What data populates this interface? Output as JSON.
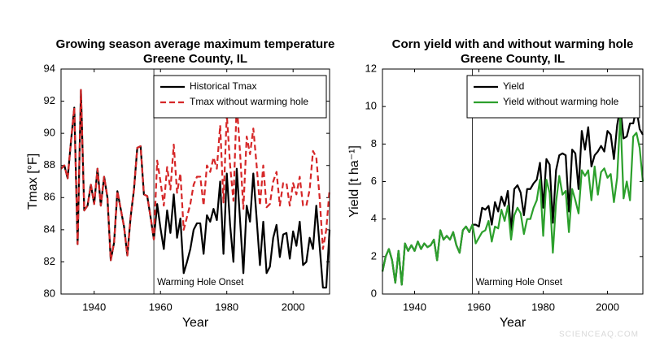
{
  "chart_data": [
    {
      "type": "line",
      "title": "Growing season average maximum temperature",
      "subtitle": "Greene County, IL",
      "x_label": "Year",
      "y_label": "Tmax [°F]",
      "x": [
        1930,
        1931,
        1932,
        1933,
        1934,
        1935,
        1936,
        1937,
        1938,
        1939,
        1940,
        1941,
        1942,
        1943,
        1944,
        1945,
        1946,
        1947,
        1948,
        1949,
        1950,
        1951,
        1952,
        1953,
        1954,
        1955,
        1956,
        1957,
        1958,
        1959,
        1960,
        1961,
        1962,
        1963,
        1964,
        1965,
        1966,
        1967,
        1968,
        1969,
        1970,
        1971,
        1972,
        1973,
        1974,
        1975,
        1976,
        1977,
        1978,
        1979,
        1980,
        1981,
        1982,
        1983,
        1984,
        1985,
        1986,
        1987,
        1988,
        1989,
        1990,
        1991,
        1992,
        1993,
        1994,
        1995,
        1996,
        1997,
        1998,
        1999,
        2000,
        2001,
        2002,
        2003,
        2004,
        2005,
        2006,
        2007,
        2008,
        2009,
        2010,
        2011
      ],
      "series": [
        {
          "name": "Historical Tmax",
          "color": "#000000",
          "line_style": "solid",
          "values": [
            87.8,
            88.0,
            87.2,
            89.5,
            91.6,
            83.1,
            92.7,
            85.2,
            85.5,
            86.8,
            85.6,
            87.8,
            85.5,
            87.3,
            86.0,
            82.1,
            83.2,
            86.4,
            85.3,
            84.2,
            82.4,
            84.8,
            86.5,
            89.1,
            89.2,
            86.2,
            86.1,
            84.8,
            83.4,
            85.6,
            84.1,
            82.8,
            85.2,
            83.8,
            86.2,
            83.5,
            84.7,
            81.3,
            82.0,
            82.8,
            84.0,
            84.4,
            84.4,
            82.5,
            84.9,
            84.5,
            85.3,
            84.6,
            87.0,
            82.5,
            87.5,
            84.3,
            82.0,
            87.8,
            84.6,
            81.3,
            85.5,
            84.5,
            87.5,
            84.7,
            81.8,
            84.5,
            81.3,
            81.7,
            83.5,
            84.3,
            82.3,
            83.7,
            83.8,
            82.2,
            83.9,
            83.0,
            84.5,
            81.8,
            82.0,
            83.5,
            82.8,
            85.5,
            83.0,
            80.4,
            80.4,
            84.0
          ]
        },
        {
          "name": "Tmax without warming hole",
          "color": "#d62728",
          "line_style": "dashed",
          "values": [
            87.8,
            88.0,
            87.2,
            89.5,
            91.6,
            83.1,
            92.7,
            85.2,
            85.5,
            86.8,
            85.6,
            87.8,
            85.5,
            87.3,
            86.0,
            82.1,
            83.2,
            86.4,
            85.3,
            84.2,
            82.4,
            84.8,
            86.5,
            89.1,
            89.2,
            86.2,
            86.1,
            84.8,
            83.4,
            88.3,
            87.0,
            85.5,
            87.9,
            86.5,
            89.3,
            86.3,
            87.5,
            84.0,
            84.8,
            85.6,
            86.8,
            87.3,
            87.3,
            85.5,
            88.0,
            87.6,
            88.5,
            87.8,
            90.5,
            85.7,
            91.2,
            88.0,
            85.8,
            91.9,
            88.8,
            85.3,
            89.8,
            88.7,
            90.3,
            88.0,
            85.5,
            88.0,
            85.4,
            85.6,
            87.0,
            87.6,
            85.5,
            86.9,
            86.9,
            85.5,
            86.9,
            86.2,
            87.3,
            85.5,
            85.5,
            86.5,
            88.9,
            88.5,
            86.0,
            82.8,
            84.0,
            86.5
          ]
        }
      ],
      "xlim": [
        1930,
        2011
      ],
      "xticks": [
        1940,
        1960,
        1980,
        2000
      ],
      "ylim": [
        80,
        94
      ],
      "yticks": [
        80,
        82,
        84,
        86,
        88,
        90,
        92,
        94
      ],
      "vline": 1958,
      "annotation": "Warming Hole Onset",
      "legend": "upper right"
    },
    {
      "type": "line",
      "title": "Corn yield with and without warming hole",
      "subtitle": "Greene County, IL",
      "x_label": "Year",
      "y_label": "Yield [t ha⁻¹]",
      "x": [
        1930,
        1931,
        1932,
        1933,
        1934,
        1935,
        1936,
        1937,
        1938,
        1939,
        1940,
        1941,
        1942,
        1943,
        1944,
        1945,
        1946,
        1947,
        1948,
        1949,
        1950,
        1951,
        1952,
        1953,
        1954,
        1955,
        1956,
        1957,
        1958,
        1959,
        1960,
        1961,
        1962,
        1963,
        1964,
        1965,
        1966,
        1967,
        1968,
        1969,
        1970,
        1971,
        1972,
        1973,
        1974,
        1975,
        1976,
        1977,
        1978,
        1979,
        1980,
        1981,
        1982,
        1983,
        1984,
        1985,
        1986,
        1987,
        1988,
        1989,
        1990,
        1991,
        1992,
        1993,
        1994,
        1995,
        1996,
        1997,
        1998,
        1999,
        2000,
        2001,
        2002,
        2003,
        2004,
        2005,
        2006,
        2007,
        2008,
        2009,
        2010,
        2011
      ],
      "series": [
        {
          "name": "Yield",
          "color": "#000000",
          "line_style": "solid",
          "values": [
            1.2,
            2.0,
            2.4,
            1.8,
            0.6,
            2.3,
            0.5,
            2.7,
            2.3,
            2.6,
            2.3,
            2.8,
            2.4,
            2.7,
            2.5,
            2.6,
            2.9,
            1.8,
            3.4,
            2.9,
            3.1,
            2.9,
            3.3,
            2.6,
            2.2,
            3.4,
            3.6,
            3.3,
            3.7,
            3.7,
            3.6,
            4.6,
            4.5,
            4.7,
            3.7,
            4.9,
            4.4,
            5.2,
            4.7,
            5.5,
            3.4,
            5.6,
            5.8,
            5.4,
            4.2,
            5.6,
            5.6,
            5.9,
            6.1,
            7.0,
            4.6,
            7.2,
            6.9,
            3.8,
            6.6,
            7.4,
            7.5,
            7.4,
            4.4,
            7.7,
            7.5,
            5.6,
            8.7,
            7.7,
            8.9,
            6.8,
            7.4,
            7.6,
            7.9,
            7.6,
            8.7,
            8.5,
            7.2,
            9.0,
            10.0,
            8.3,
            8.4,
            9.1,
            9.1,
            9.9,
            8.8,
            8.5
          ]
        },
        {
          "name": "Yield without warming hole",
          "color": "#2ca02c",
          "line_style": "solid",
          "values": [
            1.2,
            2.0,
            2.4,
            1.8,
            0.6,
            2.3,
            0.5,
            2.7,
            2.3,
            2.6,
            2.3,
            2.8,
            2.4,
            2.7,
            2.5,
            2.6,
            2.9,
            1.8,
            3.4,
            2.9,
            3.1,
            2.9,
            3.3,
            2.6,
            2.2,
            3.4,
            3.6,
            3.3,
            3.7,
            2.7,
            3.0,
            3.3,
            3.4,
            3.9,
            2.8,
            3.6,
            3.5,
            4.5,
            3.9,
            4.7,
            2.9,
            4.2,
            4.6,
            4.3,
            3.2,
            4.0,
            4.0,
            4.6,
            5.0,
            6.1,
            3.1,
            6.1,
            5.4,
            2.2,
            4.9,
            6.3,
            5.3,
            5.5,
            3.3,
            5.6,
            5.0,
            4.3,
            6.6,
            6.3,
            6.6,
            5.0,
            6.8,
            5.3,
            6.5,
            6.7,
            6.2,
            6.4,
            4.9,
            6.2,
            9.6,
            5.1,
            6.0,
            5.0,
            8.4,
            8.6,
            7.8,
            6.0
          ]
        }
      ],
      "xlim": [
        1930,
        2011
      ],
      "xticks": [
        1940,
        1960,
        1980,
        2000
      ],
      "ylim": [
        0,
        12
      ],
      "yticks": [
        0,
        2,
        4,
        6,
        8,
        10,
        12
      ],
      "vline": 1958,
      "annotation": "Warming Hole Onset",
      "legend": "upper right"
    }
  ],
  "watermark": "SCIENCEAQ.COM"
}
